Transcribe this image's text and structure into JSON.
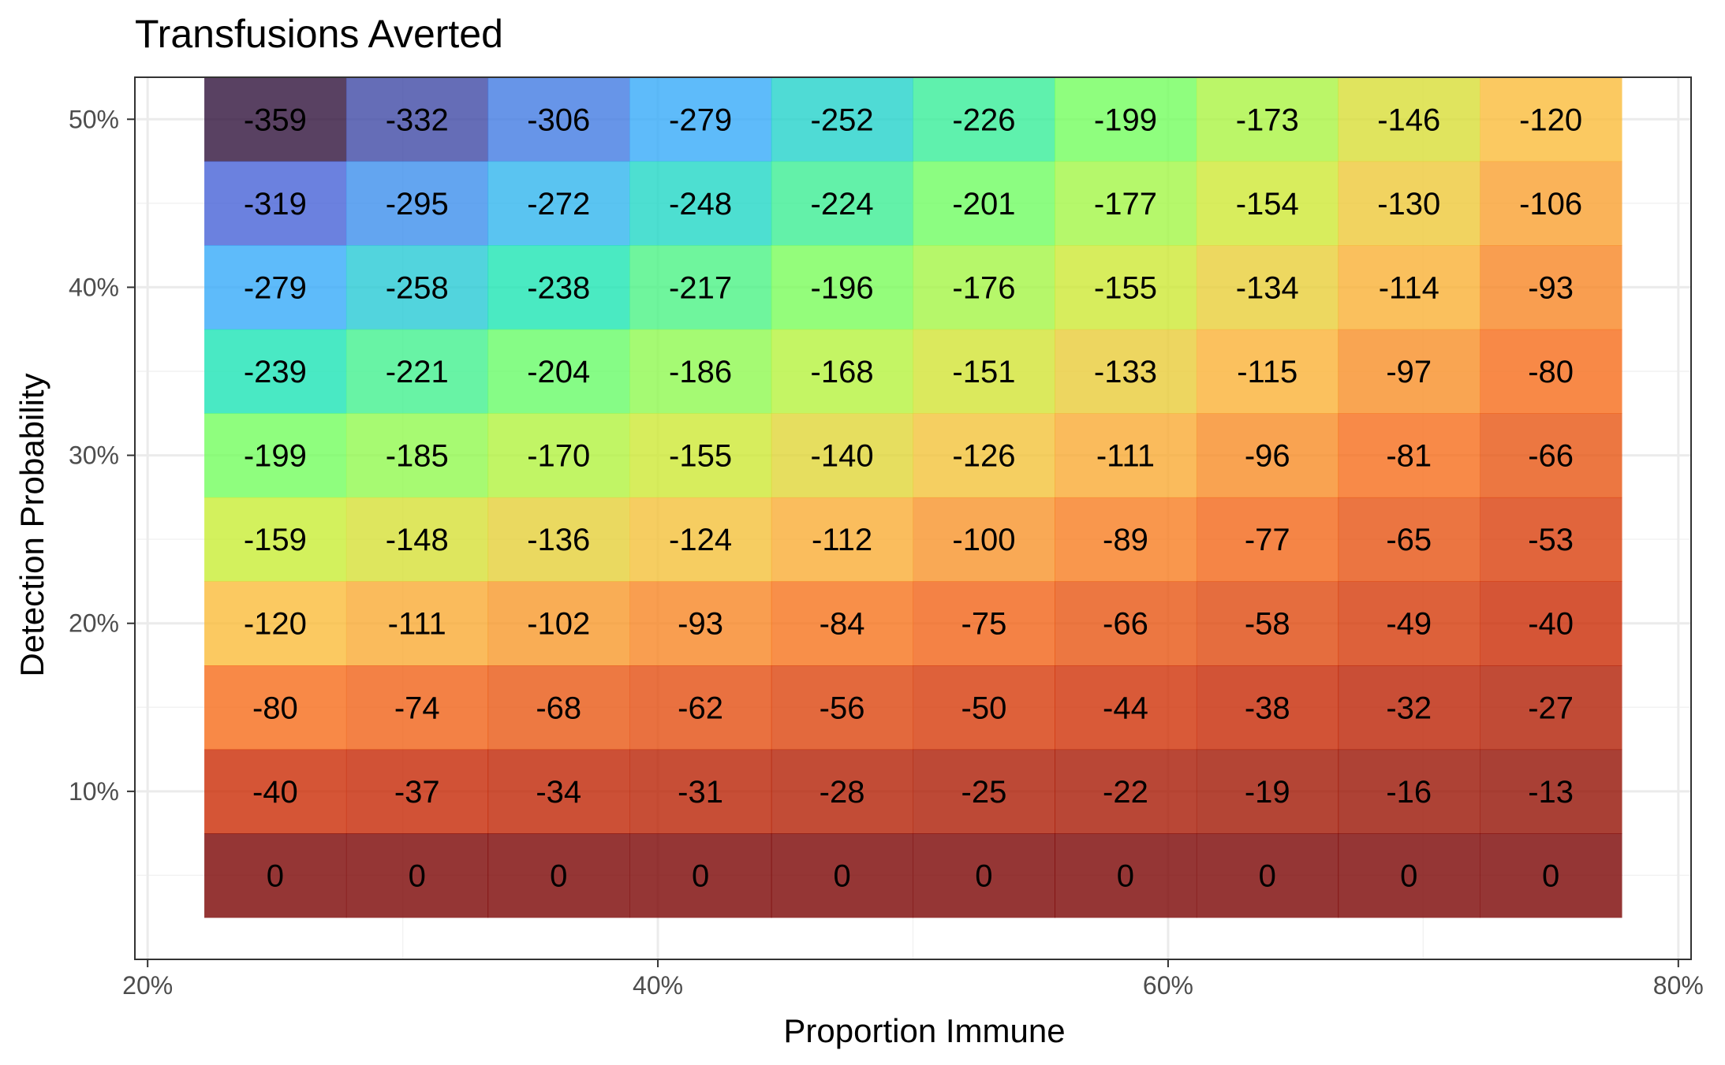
{
  "chart_data": {
    "type": "heatmap",
    "title": "Transfusions Averted",
    "xlabel": "Proportion Immune",
    "ylabel": "Detection Probability",
    "x_values": [
      0.25,
      0.3056,
      0.3611,
      0.4167,
      0.4722,
      0.5278,
      0.5833,
      0.6389,
      0.6944,
      0.75
    ],
    "y_values": [
      0.5,
      0.45,
      0.4,
      0.35,
      0.3,
      0.25,
      0.2,
      0.15,
      0.1,
      0.05
    ],
    "xlim": [
      0.195,
      0.805
    ],
    "ylim": [
      0.0,
      0.525
    ],
    "x_ticks": [
      {
        "value": 0.2,
        "label": "20%"
      },
      {
        "value": 0.4,
        "label": "40%"
      },
      {
        "value": 0.6,
        "label": "60%"
      },
      {
        "value": 0.8,
        "label": "80%"
      }
    ],
    "y_ticks": [
      {
        "value": 0.1,
        "label": "10%"
      },
      {
        "value": 0.2,
        "label": "20%"
      },
      {
        "value": 0.3,
        "label": "30%"
      },
      {
        "value": 0.4,
        "label": "40%"
      },
      {
        "value": 0.5,
        "label": "50%"
      }
    ],
    "values": [
      [
        -359,
        -332,
        -306,
        -279,
        -252,
        -226,
        -199,
        -173,
        -146,
        -120
      ],
      [
        -319,
        -295,
        -272,
        -248,
        -224,
        -201,
        -177,
        -154,
        -130,
        -106
      ],
      [
        -279,
        -258,
        -238,
        -217,
        -196,
        -176,
        -155,
        -134,
        -114,
        -93
      ],
      [
        -239,
        -221,
        -204,
        -186,
        -168,
        -151,
        -133,
        -115,
        -97,
        -80
      ],
      [
        -199,
        -185,
        -170,
        -155,
        -140,
        -126,
        -111,
        -96,
        -81,
        -66
      ],
      [
        -159,
        -148,
        -136,
        -124,
        -112,
        -100,
        -89,
        -77,
        -65,
        -53
      ],
      [
        -120,
        -111,
        -102,
        -93,
        -84,
        -75,
        -66,
        -58,
        -49,
        -40
      ],
      [
        -80,
        -74,
        -68,
        -62,
        -56,
        -50,
        -44,
        -38,
        -32,
        -27
      ],
      [
        -40,
        -37,
        -34,
        -31,
        -28,
        -25,
        -22,
        -19,
        -16,
        -13
      ],
      [
        0,
        0,
        0,
        0,
        0,
        0,
        0,
        0,
        0,
        0
      ]
    ],
    "color_scale": {
      "name": "turbo",
      "value_range": [
        -359,
        0
      ],
      "stops": [
        "#30123b",
        "#4662d7",
        "#36aaf9",
        "#1ae4b6",
        "#72fe5e",
        "#c7ef34",
        "#fabb3a",
        "#f66b19",
        "#cb2a04",
        "#7a0403"
      ],
      "opacity": 0.8
    },
    "grid": true,
    "legend": "none"
  }
}
